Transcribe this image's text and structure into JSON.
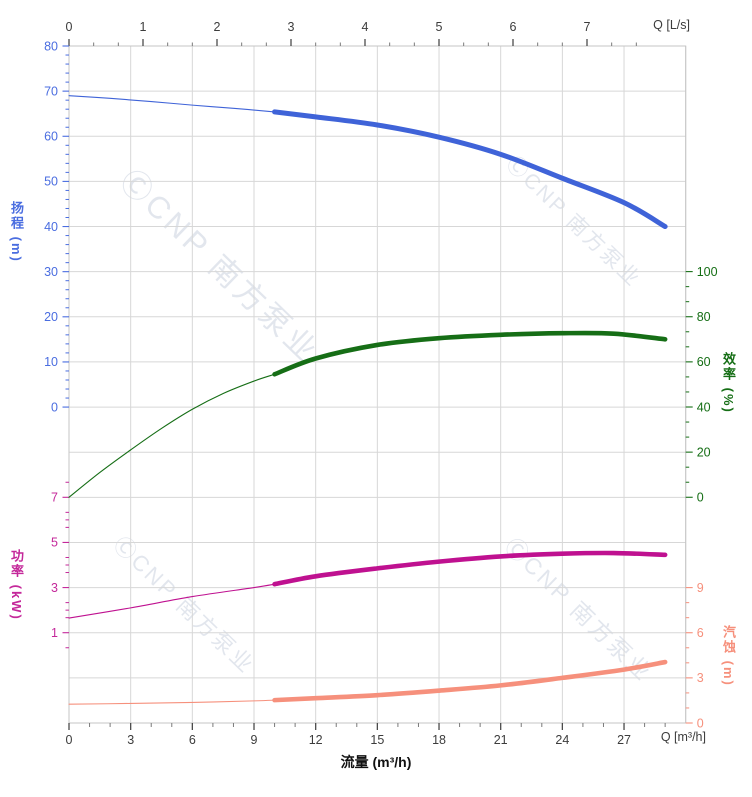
{
  "axes": {
    "top": {
      "end_label": "Q [L/s]",
      "ticks": [
        0,
        1,
        2,
        3,
        4,
        5,
        6,
        7
      ],
      "color": "#3c3c3c"
    },
    "bottom": {
      "end_label": "Q [m³/h]",
      "title": "流量 (m³/h)",
      "ticks": [
        0,
        3,
        6,
        9,
        12,
        15,
        18,
        21,
        24,
        27
      ],
      "color": "#3c3c3c"
    },
    "head": {
      "title": "扬程 (m)",
      "ticks": [
        80,
        70,
        60,
        50,
        40,
        30,
        20,
        10,
        0
      ],
      "color": "#4a6de0"
    },
    "efficiency": {
      "title": "效率 (%)",
      "ticks": [
        100,
        80,
        60,
        40,
        20,
        0
      ],
      "color": "#156e15"
    },
    "power": {
      "title": "功率 (kW)",
      "ticks": [
        7,
        5,
        3,
        1
      ],
      "color": "#c4289a"
    },
    "npsh": {
      "title": "汽蚀 (m)",
      "ticks": [
        9,
        6,
        3,
        0
      ],
      "color": "#f6907c"
    }
  },
  "watermark": {
    "text": "ⒸCNP 南方泵业",
    "color": "#ccd3e0"
  },
  "chart_data": {
    "type": "line",
    "title": "",
    "xlabel_bottom": "流量 (m³/h)",
    "xlabel_top": "Q [L/s]",
    "x_unit_bottom": "m³/h",
    "x_unit_top": "L/s",
    "x_range_m3h": [
      0,
      30
    ],
    "ls_to_m3h": 3.6,
    "grid": true,
    "duty_thick_from_m3h": 10,
    "y_axis_ranges": {
      "head_m": [
        0,
        80
      ],
      "efficiency_pct": [
        0,
        100
      ],
      "power_kW_labeled": [
        1,
        7
      ],
      "npsh_m_labeled": [
        0,
        9
      ]
    },
    "series": [
      {
        "name": "head",
        "label": "扬程",
        "unit": "m",
        "axis": "head",
        "color": "#3f63d8",
        "x_m3h": [
          0,
          2,
          4,
          6,
          8,
          10,
          12,
          15,
          18,
          21,
          24,
          27,
          29
        ],
        "values": [
          69,
          68.4,
          67.7,
          66.9,
          66.2,
          65.4,
          64.3,
          62.5,
          59.8,
          56,
          50.7,
          45.3,
          40
        ]
      },
      {
        "name": "efficiency",
        "label": "效率",
        "unit": "%",
        "axis": "efficiency",
        "color": "#166e16",
        "x_m3h": [
          0,
          1.5,
          3,
          4.5,
          6,
          7.5,
          9,
          10,
          12,
          15,
          18,
          21,
          24,
          26.5,
          29
        ],
        "values": [
          0,
          11,
          21,
          30.5,
          39,
          46,
          51.5,
          54.5,
          61.5,
          67.5,
          70.5,
          72,
          72.7,
          72.5,
          70
        ]
      },
      {
        "name": "power",
        "label": "功率",
        "unit": "kW",
        "axis": "power",
        "color": "#bf1190",
        "x_m3h": [
          0,
          3,
          6,
          9,
          10,
          12,
          15,
          18,
          21,
          24,
          26.5,
          29
        ],
        "values": [
          1.65,
          2.1,
          2.6,
          3.0,
          3.15,
          3.5,
          3.85,
          4.15,
          4.38,
          4.5,
          4.53,
          4.45
        ]
      },
      {
        "name": "npsh",
        "label": "汽蚀",
        "unit": "m",
        "axis": "npsh",
        "color": "#f6907c",
        "x_m3h": [
          0,
          3,
          6,
          9,
          10,
          12,
          15,
          18,
          21,
          24,
          27,
          29
        ],
        "values": [
          1.25,
          1.3,
          1.37,
          1.47,
          1.52,
          1.65,
          1.85,
          2.15,
          2.5,
          3.0,
          3.55,
          4.05
        ]
      }
    ]
  }
}
